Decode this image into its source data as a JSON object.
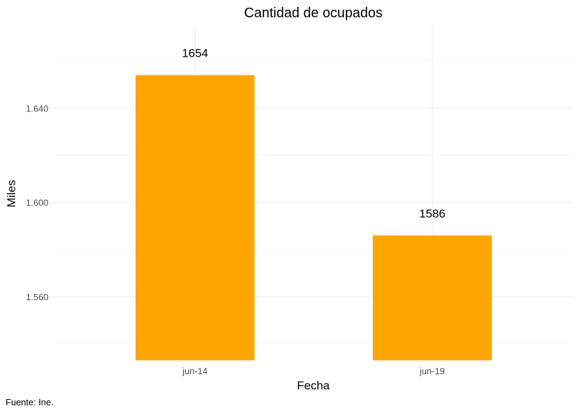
{
  "chart_data": {
    "type": "bar",
    "title": "Cantidad de ocupados",
    "xlabel": "Fecha",
    "ylabel": "Miles",
    "categories": [
      "jun-14",
      "jun-19"
    ],
    "values": [
      1654,
      1586
    ],
    "data_labels": [
      "1654",
      "1586"
    ],
    "yticks": [
      1560,
      1600,
      1640
    ],
    "ytick_labels": [
      "1.560",
      "1.600",
      "1.640"
    ],
    "yminor": [
      1540,
      1580,
      1620,
      1660
    ],
    "ylim": [
      1533,
      1675
    ],
    "bar_baseline": 1533,
    "grid": true,
    "legend": "none",
    "bar_color": "#FFA500",
    "caption": "Fuente: Ine."
  }
}
